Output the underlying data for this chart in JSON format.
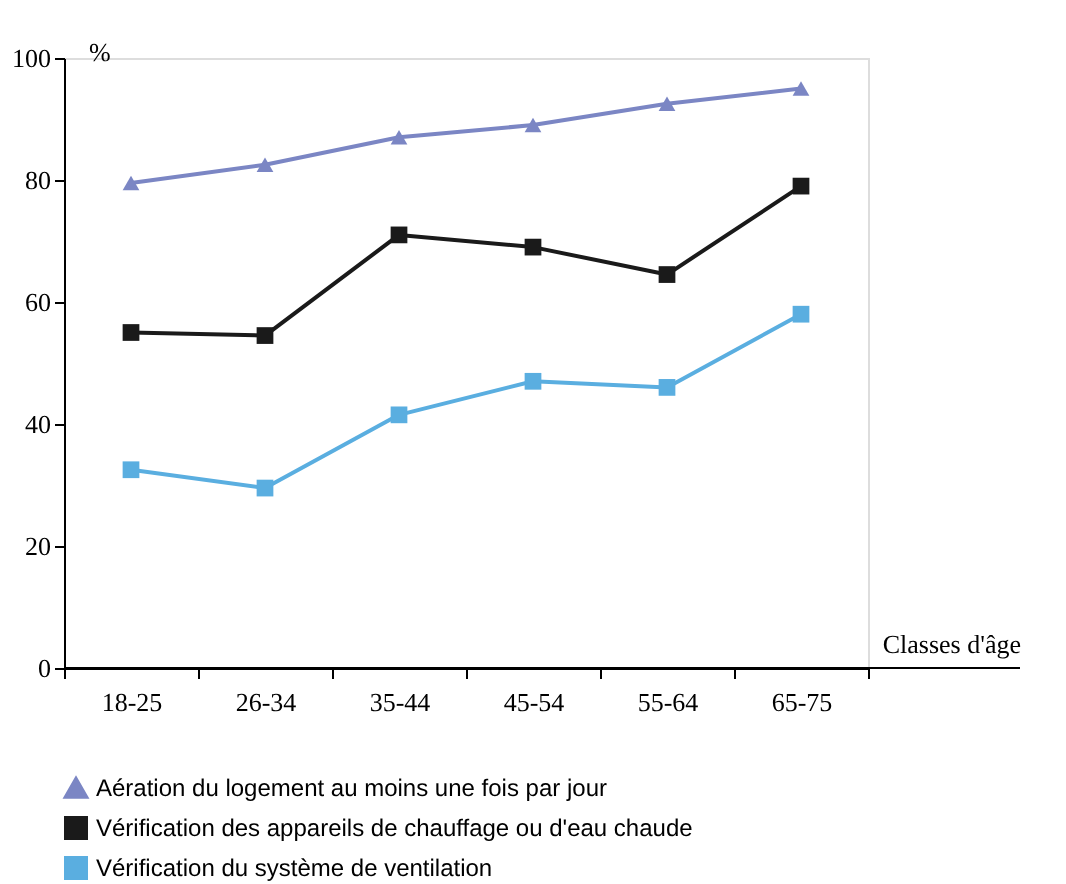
{
  "chart_data": {
    "type": "line",
    "xlabel": "Classes d'âge",
    "ylabel": "%",
    "categories": [
      "18-25",
      "26-34",
      "35-44",
      "45-54",
      "55-64",
      "65-75"
    ],
    "series": [
      {
        "name": "Aération du logement au moins une fois par jour",
        "color": "#7b86c4",
        "marker": "triangle",
        "values": [
          79.5,
          82.5,
          87,
          89,
          92.5,
          95
        ]
      },
      {
        "name": "Vérification des appareils de chauffage ou d'eau chaude",
        "color": "#1a1a1a",
        "marker": "square",
        "values": [
          55,
          54.5,
          71,
          69,
          64.5,
          79
        ]
      },
      {
        "name": "Vérification du système de ventilation",
        "color": "#5aaee0",
        "marker": "square",
        "values": [
          32.5,
          29.5,
          41.5,
          47,
          46,
          58
        ]
      }
    ],
    "ylim": [
      0,
      100
    ],
    "yticks": [
      0,
      20,
      40,
      60,
      80,
      100
    ],
    "grid": false,
    "legend": "bottom",
    "line_style": "solid"
  }
}
